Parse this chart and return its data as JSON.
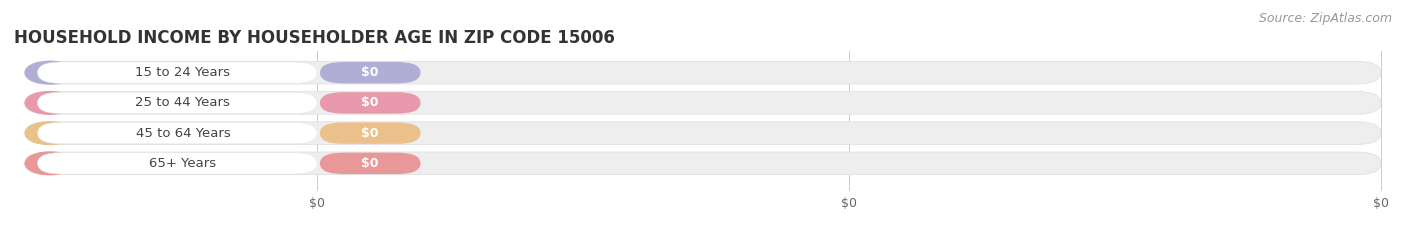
{
  "title": "HOUSEHOLD INCOME BY HOUSEHOLDER AGE IN ZIP CODE 15006",
  "source_text": "Source: ZipAtlas.com",
  "categories": [
    "15 to 24 Years",
    "25 to 44 Years",
    "45 to 64 Years",
    "65+ Years"
  ],
  "values": [
    0,
    0,
    0,
    0
  ],
  "bar_colors": [
    "#b0aed4",
    "#e89aac",
    "#ecc08a",
    "#e89898"
  ],
  "bar_bg_color": "#eeeeee",
  "title_fontsize": 12,
  "tick_fontsize": 9,
  "source_fontsize": 9,
  "background_color": "#ffffff",
  "tick_label_color": "#666666"
}
